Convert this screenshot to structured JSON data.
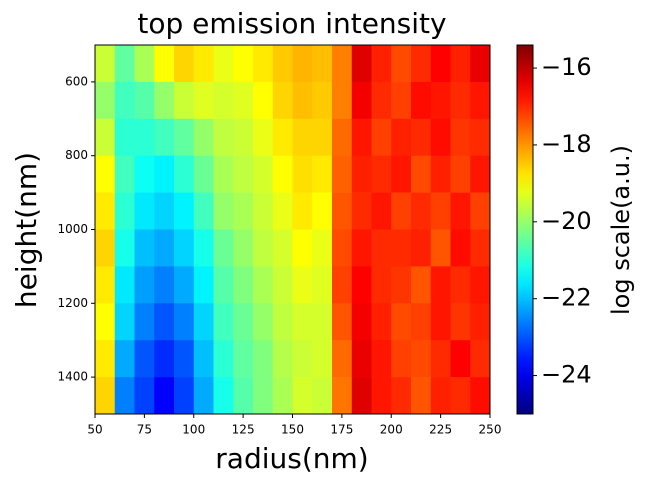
{
  "chart_data": {
    "type": "heatmap",
    "title": "top emission intensity",
    "xlabel": "radius(nm)",
    "ylabel": "height(nm)",
    "colorbar_label": "log scale(a.u.)",
    "colormap": "jet",
    "x": [
      55,
      65,
      75,
      85,
      95,
      105,
      115,
      125,
      135,
      145,
      155,
      165,
      175,
      185,
      195,
      205,
      215,
      225,
      235,
      245
    ],
    "y": [
      550,
      650,
      750,
      850,
      950,
      1050,
      1150,
      1250,
      1350,
      1450
    ],
    "z": [
      [
        -19.5,
        -20.5,
        -19.8,
        -19.0,
        -18.6,
        -18.8,
        -19.2,
        -19.0,
        -18.8,
        -18.5,
        -18.3,
        -18.4,
        -17.8,
        -16.3,
        -16.9,
        -17.3,
        -17.0,
        -16.6,
        -16.9,
        -16.4
      ],
      [
        -20.0,
        -20.8,
        -20.6,
        -20.0,
        -19.5,
        -19.3,
        -19.4,
        -19.3,
        -19.0,
        -18.6,
        -18.4,
        -18.5,
        -17.8,
        -16.5,
        -17.0,
        -17.2,
        -16.7,
        -16.8,
        -17.0,
        -16.8
      ],
      [
        -19.5,
        -21.0,
        -21.0,
        -20.8,
        -20.5,
        -20.0,
        -19.6,
        -19.5,
        -19.2,
        -18.8,
        -18.6,
        -18.6,
        -17.6,
        -16.8,
        -17.2,
        -16.9,
        -17.0,
        -16.7,
        -17.1,
        -17.0
      ],
      [
        -19.0,
        -20.8,
        -21.3,
        -21.5,
        -21.0,
        -20.4,
        -19.8,
        -19.6,
        -19.4,
        -19.0,
        -18.7,
        -18.8,
        -17.5,
        -16.9,
        -17.0,
        -16.8,
        -17.3,
        -16.9,
        -17.2,
        -16.8
      ],
      [
        -18.8,
        -21.0,
        -21.6,
        -21.8,
        -21.5,
        -20.8,
        -20.0,
        -19.8,
        -19.5,
        -19.2,
        -18.8,
        -19.0,
        -17.4,
        -17.0,
        -16.8,
        -17.2,
        -17.0,
        -17.2,
        -16.8,
        -17.2
      ],
      [
        -18.6,
        -21.2,
        -22.0,
        -22.2,
        -21.8,
        -21.2,
        -20.4,
        -20.0,
        -19.6,
        -19.4,
        -19.0,
        -19.2,
        -17.3,
        -16.8,
        -17.0,
        -17.0,
        -16.9,
        -17.4,
        -16.7,
        -17.0
      ],
      [
        -18.8,
        -21.6,
        -22.3,
        -22.6,
        -22.2,
        -21.5,
        -20.6,
        -20.2,
        -19.8,
        -19.5,
        -19.2,
        -19.3,
        -17.2,
        -16.6,
        -17.0,
        -17.1,
        -17.4,
        -16.8,
        -17.0,
        -16.8
      ],
      [
        -19.0,
        -21.8,
        -22.6,
        -23.0,
        -22.6,
        -21.8,
        -20.8,
        -20.4,
        -20.0,
        -19.6,
        -19.4,
        -19.4,
        -17.4,
        -16.5,
        -16.9,
        -17.3,
        -17.2,
        -16.8,
        -17.1,
        -16.9
      ],
      [
        -18.8,
        -22.2,
        -23.0,
        -23.4,
        -23.0,
        -22.0,
        -21.0,
        -20.5,
        -20.2,
        -19.7,
        -19.5,
        -19.4,
        -17.6,
        -16.4,
        -16.8,
        -17.2,
        -17.3,
        -17.0,
        -16.6,
        -17.0
      ],
      [
        -18.6,
        -22.6,
        -23.2,
        -23.8,
        -23.2,
        -22.2,
        -21.2,
        -20.6,
        -20.2,
        -19.8,
        -19.4,
        -19.5,
        -17.7,
        -16.3,
        -16.8,
        -17.0,
        -17.4,
        -16.9,
        -17.0,
        -16.7
      ]
    ],
    "xlim": [
      50,
      250
    ],
    "xticks": [
      50,
      75,
      100,
      125,
      150,
      175,
      200,
      225,
      250
    ],
    "ylim": [
      1500,
      500
    ],
    "yticks": [
      600,
      800,
      1000,
      1200,
      1400
    ],
    "zlim": [
      -25,
      -15.4
    ],
    "zticks": [
      {
        "value": -16,
        "label": "−16"
      },
      {
        "value": -18,
        "label": "−18"
      },
      {
        "value": -20,
        "label": "−20"
      },
      {
        "value": -22,
        "label": "−22"
      },
      {
        "value": -24,
        "label": "−24"
      }
    ]
  }
}
